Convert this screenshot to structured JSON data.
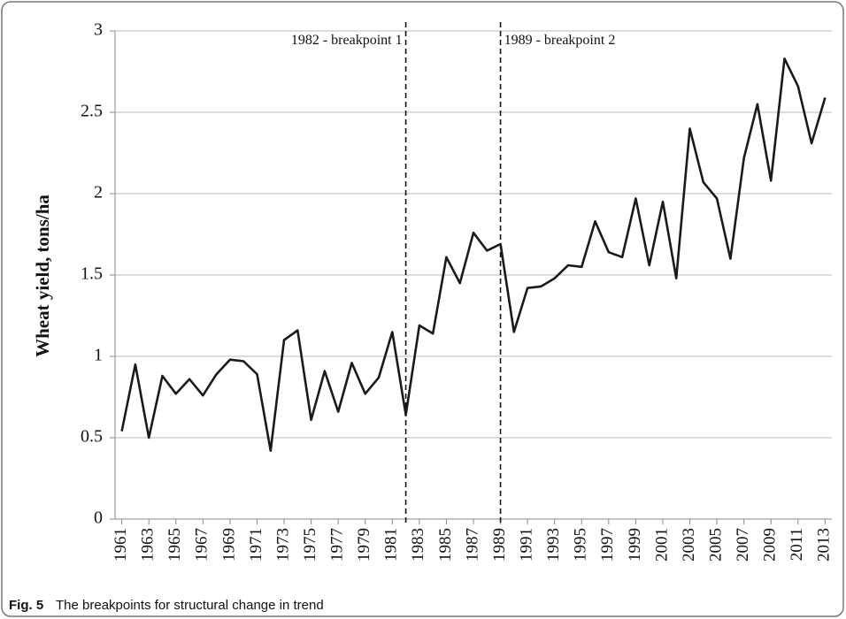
{
  "chart_data": {
    "type": "line",
    "y_label": "Wheat yield, tons/ha",
    "caption_label": "Fig. 5",
    "caption": "The breakpoints for structural change in trend",
    "x": [
      1961,
      1962,
      1963,
      1964,
      1965,
      1966,
      1967,
      1968,
      1969,
      1970,
      1971,
      1972,
      1973,
      1974,
      1975,
      1976,
      1977,
      1978,
      1979,
      1980,
      1981,
      1982,
      1983,
      1984,
      1985,
      1986,
      1987,
      1988,
      1989,
      1990,
      1991,
      1992,
      1993,
      1994,
      1995,
      1996,
      1997,
      1998,
      1999,
      2000,
      2001,
      2002,
      2003,
      2004,
      2005,
      2006,
      2007,
      2008,
      2009,
      2010,
      2011,
      2012,
      2013
    ],
    "values": [
      0.54,
      0.95,
      0.5,
      0.88,
      0.77,
      0.86,
      0.76,
      0.89,
      0.98,
      0.97,
      0.89,
      0.42,
      1.1,
      1.16,
      0.61,
      0.91,
      0.66,
      0.96,
      0.77,
      0.87,
      1.15,
      0.64,
      1.19,
      1.14,
      1.61,
      1.45,
      1.76,
      1.65,
      1.69,
      1.15,
      1.42,
      1.43,
      1.48,
      1.56,
      1.55,
      1.83,
      1.64,
      1.61,
      1.97,
      1.56,
      1.95,
      1.48,
      2.4,
      2.07,
      1.97,
      1.6,
      2.22,
      2.55,
      2.08,
      2.83,
      2.66,
      2.31,
      2.59
    ],
    "color": "#1a1a1a",
    "xlim": [
      1960.5,
      2013.5
    ],
    "xticks": [
      1961,
      1963,
      1965,
      1967,
      1969,
      1971,
      1973,
      1975,
      1977,
      1979,
      1981,
      1983,
      1985,
      1987,
      1989,
      1991,
      1993,
      1995,
      1997,
      1999,
      2001,
      2003,
      2005,
      2007,
      2009,
      2011,
      2013
    ],
    "ylim": [
      0,
      3
    ],
    "yticks": [
      0,
      0.5,
      1,
      1.5,
      2,
      2.5,
      3
    ],
    "grid": true,
    "annotations": [
      {
        "x": 1982,
        "text": "1982 - breakpoint 1"
      },
      {
        "x": 1989,
        "text": "1989 - breakpoint 2"
      }
    ]
  }
}
